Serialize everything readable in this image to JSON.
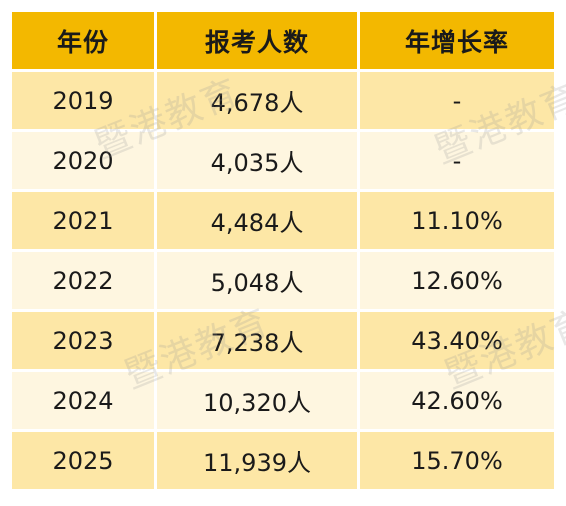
{
  "table": {
    "headers": [
      "年份",
      "报考人数",
      "年增长率"
    ],
    "rows": [
      {
        "year": "2019",
        "count": "4,678人",
        "growth": "-"
      },
      {
        "year": "2020",
        "count": "4,035人",
        "growth": "-"
      },
      {
        "year": "2021",
        "count": "4,484人",
        "growth": "11.10%"
      },
      {
        "year": "2022",
        "count": "5,048人",
        "growth": "12.60%"
      },
      {
        "year": "2023",
        "count": "7,238人",
        "growth": "43.40%"
      },
      {
        "year": "2024",
        "count": "10,320人",
        "growth": "42.60%"
      },
      {
        "year": "2025",
        "count": "11,939人",
        "growth": "15.70%"
      }
    ]
  },
  "watermark": {
    "text": "暨港教育"
  }
}
